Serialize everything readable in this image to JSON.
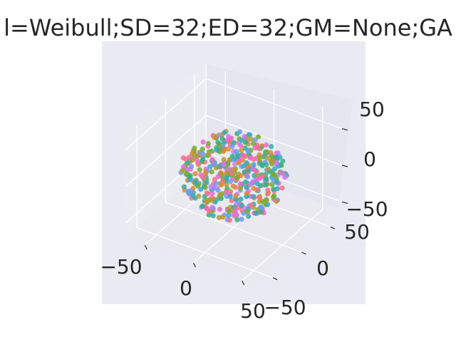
{
  "chart_data": {
    "type": "scatter",
    "title": "l=Weibull;SD=32;ED=32;GM=None;GA",
    "xlabel": "",
    "ylabel": "",
    "zlabel": "",
    "x_ticks": [
      "−50",
      "0",
      "50"
    ],
    "y_ticks": [
      "−50",
      "0",
      "50"
    ],
    "z_ticks": [
      "−50",
      "0",
      "50"
    ],
    "xlim": [
      -70,
      70
    ],
    "ylim": [
      -70,
      70
    ],
    "zlim": [
      -70,
      70
    ],
    "grid": true,
    "palette": [
      "#f77189",
      "#dc8932",
      "#ae9d31",
      "#77ab31",
      "#33b07a",
      "#36ada4",
      "#38a9c5",
      "#6e9bf4",
      "#cc7af4",
      "#f565cc"
    ],
    "pane_color": "#eaeaf2",
    "point_count": 500,
    "sphere_radius": 48,
    "seed": 32
  }
}
